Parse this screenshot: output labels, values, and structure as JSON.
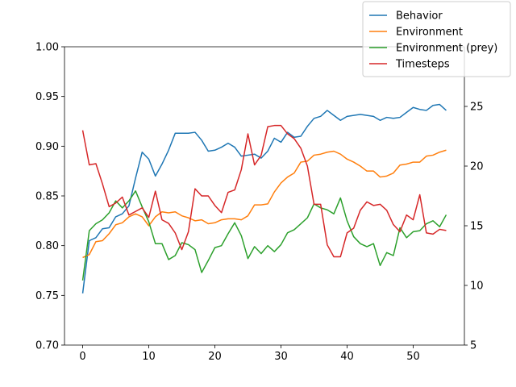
{
  "chart_data": {
    "type": "line",
    "title": "",
    "xlabel": "",
    "ylabel": "",
    "y2label": "",
    "xlim": [
      -2.75,
      57.75
    ],
    "ylim": [
      0.7,
      1.0
    ],
    "y2lim": [
      5,
      30
    ],
    "x_ticks": [
      0,
      10,
      20,
      30,
      40,
      50
    ],
    "y_ticks": [
      0.7,
      0.75,
      0.8,
      0.85,
      0.9,
      0.95,
      1.0
    ],
    "y_tick_labels": [
      "0.70",
      "0.75",
      "0.80",
      "0.85",
      "0.90",
      "0.95",
      "1.00"
    ],
    "y2_ticks": [
      5,
      10,
      15,
      20,
      25
    ],
    "grid": false,
    "legend_position": "top-right",
    "x": [
      0,
      1,
      2,
      3,
      4,
      5,
      6,
      7,
      8,
      9,
      10,
      11,
      12,
      13,
      14,
      15,
      16,
      17,
      18,
      19,
      20,
      21,
      22,
      23,
      24,
      25,
      26,
      27,
      28,
      29,
      30,
      31,
      32,
      33,
      34,
      35,
      36,
      37,
      38,
      39,
      40,
      41,
      42,
      43,
      44,
      45,
      46,
      47,
      48,
      49,
      50,
      51,
      52,
      53,
      54,
      55
    ],
    "series": [
      {
        "name": "Behavior",
        "color": "#1f77b4",
        "axis": "left",
        "values": [
          0.752,
          0.805,
          0.808,
          0.817,
          0.818,
          0.829,
          0.832,
          0.84,
          0.868,
          0.894,
          0.887,
          0.87,
          0.882,
          0.896,
          0.913,
          0.913,
          0.913,
          0.914,
          0.906,
          0.895,
          0.896,
          0.899,
          0.903,
          0.899,
          0.89,
          0.891,
          0.892,
          0.888,
          0.895,
          0.908,
          0.904,
          0.914,
          0.909,
          0.91,
          0.92,
          0.928,
          0.93,
          0.936,
          0.931,
          0.926,
          0.93,
          0.931,
          0.932,
          0.931,
          0.93,
          0.926,
          0.929,
          0.928,
          0.929,
          0.934,
          0.939,
          0.937,
          0.936,
          0.941,
          0.942,
          0.936
        ]
      },
      {
        "name": "Environment",
        "color": "#ff7f0e",
        "axis": "left",
        "values": [
          0.788,
          0.791,
          0.804,
          0.805,
          0.812,
          0.821,
          0.823,
          0.829,
          0.832,
          0.829,
          0.82,
          0.829,
          0.834,
          0.833,
          0.834,
          0.83,
          0.828,
          0.825,
          0.826,
          0.822,
          0.823,
          0.826,
          0.827,
          0.827,
          0.826,
          0.83,
          0.841,
          0.841,
          0.842,
          0.854,
          0.863,
          0.869,
          0.873,
          0.884,
          0.885,
          0.891,
          0.892,
          0.894,
          0.895,
          0.892,
          0.887,
          0.884,
          0.88,
          0.875,
          0.875,
          0.869,
          0.87,
          0.873,
          0.881,
          0.882,
          0.884,
          0.884,
          0.89,
          0.891,
          0.894,
          0.896
        ]
      },
      {
        "name": "Environment (prey)",
        "color": "#2ca02c",
        "axis": "left",
        "values": [
          0.765,
          0.815,
          0.822,
          0.826,
          0.833,
          0.845,
          0.838,
          0.845,
          0.855,
          0.839,
          0.824,
          0.802,
          0.802,
          0.786,
          0.79,
          0.803,
          0.801,
          0.796,
          0.773,
          0.785,
          0.798,
          0.8,
          0.812,
          0.823,
          0.81,
          0.787,
          0.799,
          0.792,
          0.8,
          0.794,
          0.801,
          0.813,
          0.816,
          0.822,
          0.828,
          0.842,
          0.838,
          0.836,
          0.832,
          0.848,
          0.825,
          0.809,
          0.802,
          0.799,
          0.802,
          0.78,
          0.793,
          0.79,
          0.818,
          0.808,
          0.814,
          0.815,
          0.822,
          0.825,
          0.819,
          0.831
        ]
      },
      {
        "name": "Timesteps",
        "color": "#d62728",
        "axis": "right",
        "values": [
          23.0,
          20.1,
          20.2,
          18.5,
          16.6,
          16.9,
          17.4,
          15.9,
          16.2,
          16.5,
          15.7,
          17.9,
          15.5,
          15.2,
          14.4,
          13.0,
          14.5,
          18.1,
          17.5,
          17.5,
          16.7,
          16.1,
          17.8,
          18.0,
          19.7,
          22.7,
          20.1,
          20.9,
          23.3,
          23.4,
          23.4,
          22.7,
          22.3,
          21.5,
          20.0,
          16.8,
          16.8,
          13.4,
          12.4,
          12.4,
          14.4,
          14.8,
          16.3,
          17.0,
          16.7,
          16.8,
          16.3,
          15.1,
          14.5,
          15.9,
          15.5,
          17.6,
          14.4,
          14.3,
          14.7,
          14.6
        ]
      }
    ]
  }
}
